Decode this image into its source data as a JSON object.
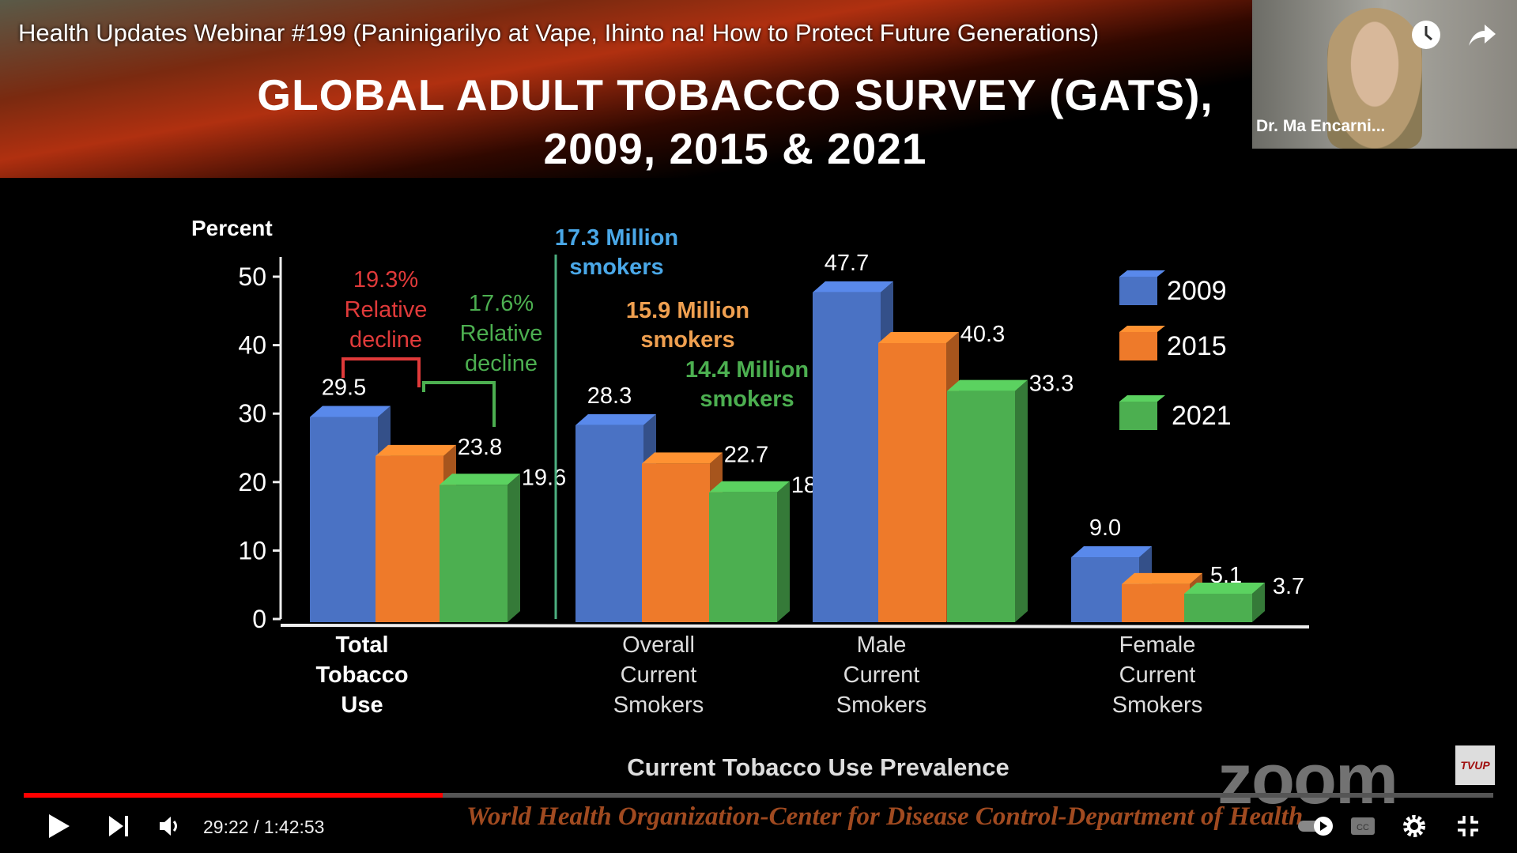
{
  "video": {
    "title": "Health Updates Webinar #199 (Paninigarilyo at Vape, Ihinto na! How to Protect Future Generations)",
    "time": "29:22 / 1:42:53",
    "progress_fraction": 0.285
  },
  "slide": {
    "heading_line1": "GLOBAL ADULT TOBACCO SURVEY (GATS),",
    "heading_line2": "2009, 2015 & 2021",
    "footer": "World Health Organization-Center for Disease Control-Department of Health"
  },
  "webcam": {
    "name": "Dr. Ma Encarni..."
  },
  "watermark": {
    "logo": "zoom",
    "badge": "TVUP"
  },
  "chart_data": {
    "type": "bar",
    "ylabel": "Percent",
    "xlabel": "Current Tobacco Use Prevalence",
    "ylim": [
      0,
      50
    ],
    "yticks": [
      "0",
      "10",
      "20",
      "30",
      "40",
      "50"
    ],
    "categories": [
      "Total Tobacco Use",
      "Overall Current Smokers",
      "Male Current Smokers",
      "Female Current Smokers"
    ],
    "category_lines": [
      [
        "Total",
        "Tobacco",
        "Use"
      ],
      [
        "Overall",
        "Current",
        "Smokers"
      ],
      [
        "Male",
        "Current",
        "Smokers"
      ],
      [
        "Female",
        "Current",
        "Smokers"
      ]
    ],
    "series": [
      {
        "name": "2009",
        "color": "#4a72c4",
        "values": [
          29.5,
          28.3,
          47.7,
          9.0
        ],
        "labels": [
          "29.5",
          "28.3",
          "47.7",
          "9.0"
        ]
      },
      {
        "name": "2015",
        "color": "#ee7a2a",
        "values": [
          23.8,
          22.7,
          40.3,
          5.1
        ],
        "labels": [
          "23.8",
          "22.7",
          "40.3",
          "5.1"
        ]
      },
      {
        "name": "2021",
        "color": "#4caf50",
        "values": [
          19.6,
          18.5,
          33.3,
          3.7
        ],
        "labels": [
          "19.6",
          "18.5",
          "33.3",
          "3.7"
        ]
      }
    ],
    "legend_placement": "right",
    "annotations": {
      "decline_2015": {
        "lines": [
          "19.3%",
          "Relative",
          "decline"
        ],
        "color": "#e03a3a"
      },
      "decline_2021": {
        "lines": [
          "17.6%",
          "Relative",
          "decline"
        ],
        "color": "#4caf50"
      },
      "smokers_2009": {
        "lines": [
          "17.3 Million",
          "smokers"
        ],
        "color": "#4aa8e8"
      },
      "smokers_2015": {
        "lines": [
          "15.9 Million",
          "smokers"
        ],
        "color": "#f0a050"
      },
      "smokers_2021": {
        "lines": [
          "14.4 Million",
          "smokers"
        ],
        "color": "#4caf50"
      }
    }
  }
}
